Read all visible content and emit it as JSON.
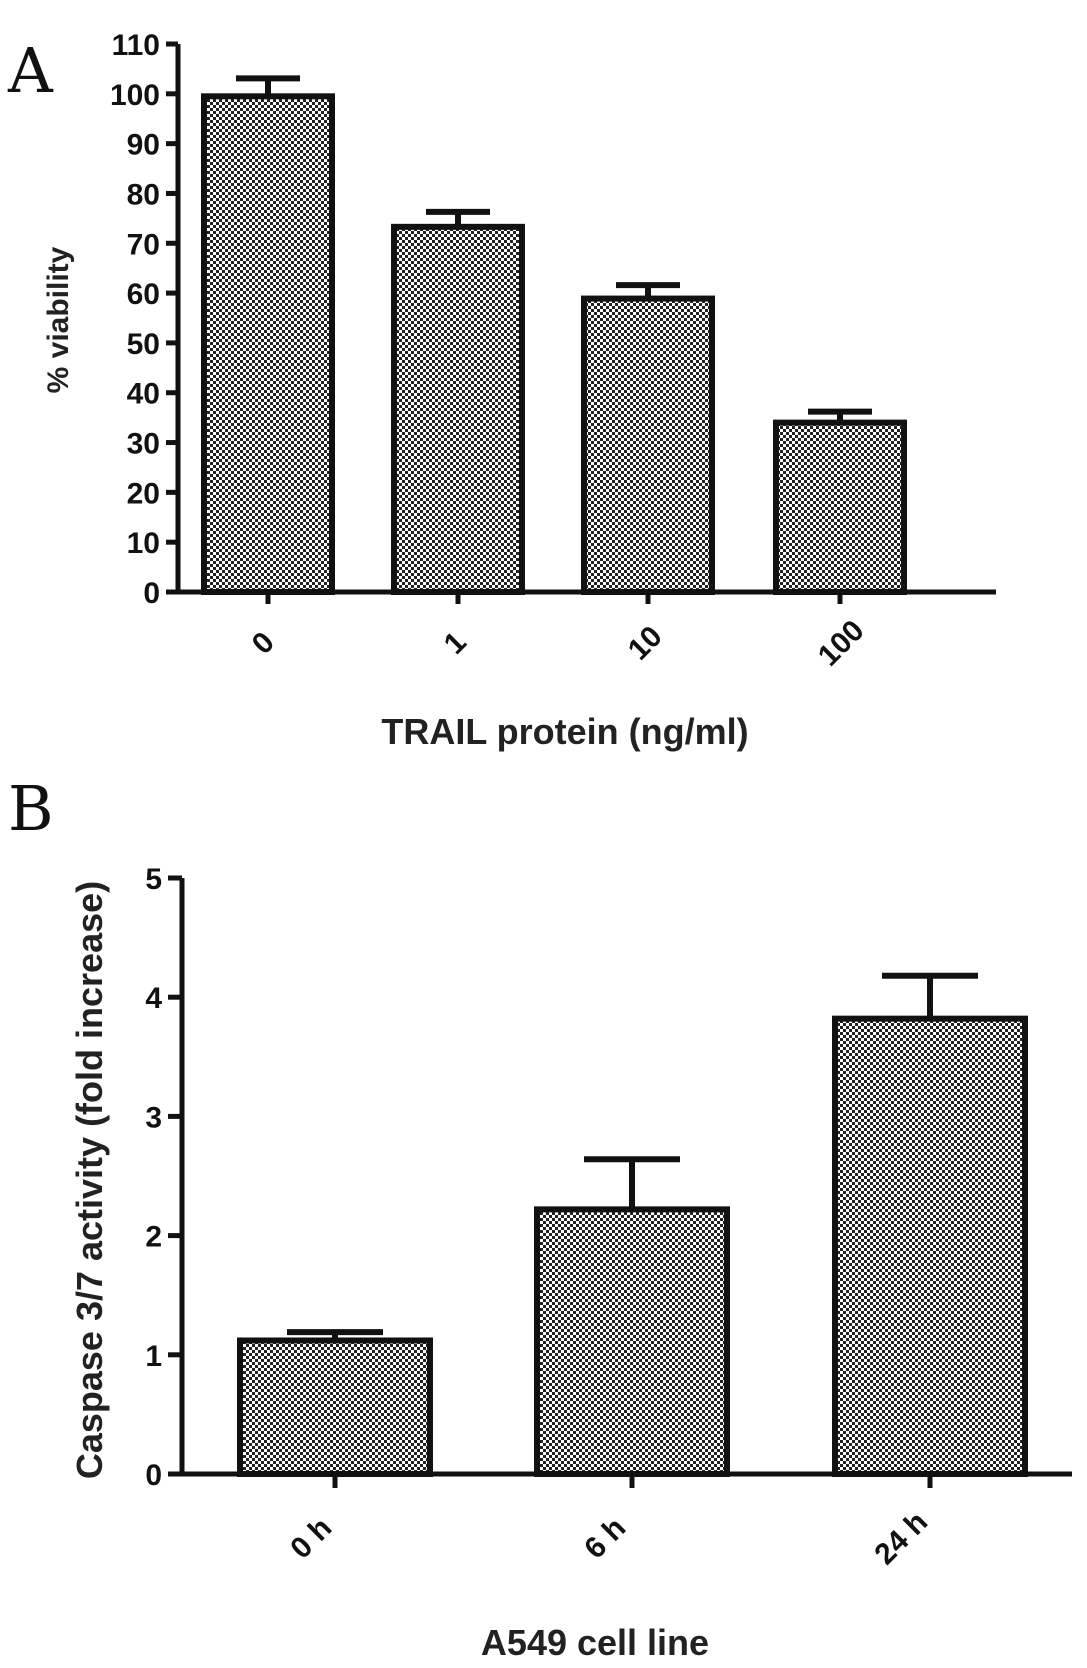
{
  "chart_data": [
    {
      "panel": "A",
      "type": "bar",
      "categories": [
        "0",
        "1",
        "10",
        "100"
      ],
      "values": [
        99.5,
        73.3,
        58.9,
        34.0
      ],
      "errors": [
        3.6,
        3.0,
        2.7,
        2.2
      ],
      "xlabel": "TRAIL protein (ng/ml)",
      "ylabel": "% viability",
      "ylim": [
        0,
        110
      ],
      "yticks": [
        "0",
        "10",
        "20",
        "30",
        "40",
        "50",
        "60",
        "70",
        "80",
        "90",
        "100",
        "110"
      ],
      "grid": false,
      "pattern": "checkered"
    },
    {
      "panel": "B",
      "type": "bar",
      "categories": [
        "0 h",
        "6 h",
        "24 h"
      ],
      "values": [
        1.12,
        2.22,
        3.82
      ],
      "errors": [
        0.07,
        0.42,
        0.36
      ],
      "xlabel": "A549 cell line",
      "ylabel": "Caspase 3/7 activity (fold increase)",
      "ylim": [
        0,
        5
      ],
      "yticks": [
        "0",
        "1",
        "2",
        "3",
        "4",
        "5"
      ],
      "grid": false,
      "pattern": "checkered"
    }
  ]
}
